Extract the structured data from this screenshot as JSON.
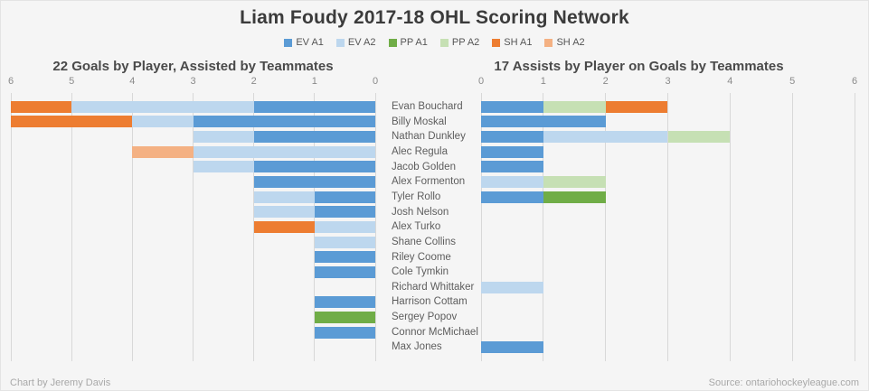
{
  "page": {
    "title": "Liam Foudy 2017-18 OHL Scoring Network",
    "footer_left": "Chart by Jeremy Davis",
    "footer_right": "Source: ontariohockeyleague.com",
    "background_color": "#f5f5f5",
    "gridline_color": "#d8d8d8"
  },
  "chart_data": {
    "type": "bar",
    "orientation": "horizontal",
    "stacked": true,
    "grid": true,
    "legend_position": "top-center",
    "legend": [
      {
        "label": "EV A1",
        "color": "#5b9bd5"
      },
      {
        "label": "EV A2",
        "color": "#bdd7ee"
      },
      {
        "label": "PP A1",
        "color": "#70ad47"
      },
      {
        "label": "PP A2",
        "color": "#c6e0b4"
      },
      {
        "label": "SH A1",
        "color": "#ed7d31"
      },
      {
        "label": "SH A2",
        "color": "#f4b183"
      }
    ],
    "players": [
      "Evan Bouchard",
      "Billy Moskal",
      "Nathan Dunkley",
      "Alec Regula",
      "Jacob Golden",
      "Alex Formenton",
      "Tyler Rollo",
      "Josh Nelson",
      "Alex Turko",
      "Shane Collins",
      "Riley Coome",
      "Cole Tymkin",
      "Richard Whittaker",
      "Harrison Cottam",
      "Sergey Popov",
      "Connor McMichael",
      "Max Jones"
    ],
    "panels": [
      {
        "id": "goals",
        "title": "22 Goals by Player, Assisted by Teammates",
        "direction": "rtl",
        "axis": {
          "min": 0,
          "max": 6,
          "ticks": [
            "6",
            "5",
            "4",
            "3",
            "2",
            "1",
            "0"
          ]
        },
        "rows": [
          [
            [
              "EV A1",
              2
            ],
            [
              "EV A2",
              3
            ],
            [
              "SH A1",
              1
            ]
          ],
          [
            [
              "EV A1",
              3
            ],
            [
              "EV A2",
              1
            ],
            [
              "SH A1",
              2
            ]
          ],
          [
            [
              "EV A1",
              2
            ],
            [
              "EV A2",
              1
            ]
          ],
          [
            [
              "EV A2",
              3
            ],
            [
              "SH A2",
              1
            ]
          ],
          [
            [
              "EV A1",
              2
            ],
            [
              "EV A2",
              1
            ]
          ],
          [
            [
              "EV A1",
              2
            ]
          ],
          [
            [
              "EV A1",
              1
            ],
            [
              "EV A2",
              1
            ]
          ],
          [
            [
              "EV A1",
              1
            ],
            [
              "EV A2",
              1
            ]
          ],
          [
            [
              "EV A2",
              1
            ],
            [
              "SH A1",
              1
            ]
          ],
          [
            [
              "EV A2",
              1
            ]
          ],
          [
            [
              "EV A1",
              1
            ]
          ],
          [
            [
              "EV A1",
              1
            ]
          ],
          [],
          [
            [
              "EV A1",
              1
            ]
          ],
          [
            [
              "PP A1",
              1
            ]
          ],
          [
            [
              "EV A1",
              1
            ]
          ],
          []
        ]
      },
      {
        "id": "assists",
        "title": "17 Assists by Player on Goals by Teammates",
        "direction": "ltr",
        "axis": {
          "min": 0,
          "max": 6,
          "ticks": [
            "0",
            "1",
            "2",
            "3",
            "4",
            "5",
            "6"
          ]
        },
        "rows": [
          [
            [
              "EV A1",
              1
            ],
            [
              "PP A2",
              1
            ],
            [
              "SH A1",
              1
            ]
          ],
          [
            [
              "EV A1",
              2
            ]
          ],
          [
            [
              "EV A1",
              1
            ],
            [
              "EV A2",
              2
            ],
            [
              "PP A2",
              1
            ]
          ],
          [
            [
              "EV A1",
              1
            ]
          ],
          [
            [
              "EV A1",
              1
            ]
          ],
          [
            [
              "EV A2",
              1
            ],
            [
              "PP A2",
              1
            ]
          ],
          [
            [
              "EV A1",
              1
            ],
            [
              "PP A1",
              1
            ]
          ],
          [],
          [],
          [],
          [],
          [],
          [
            [
              "EV A2",
              1
            ]
          ],
          [],
          [],
          [],
          [
            [
              "EV A1",
              1
            ]
          ]
        ]
      }
    ]
  }
}
